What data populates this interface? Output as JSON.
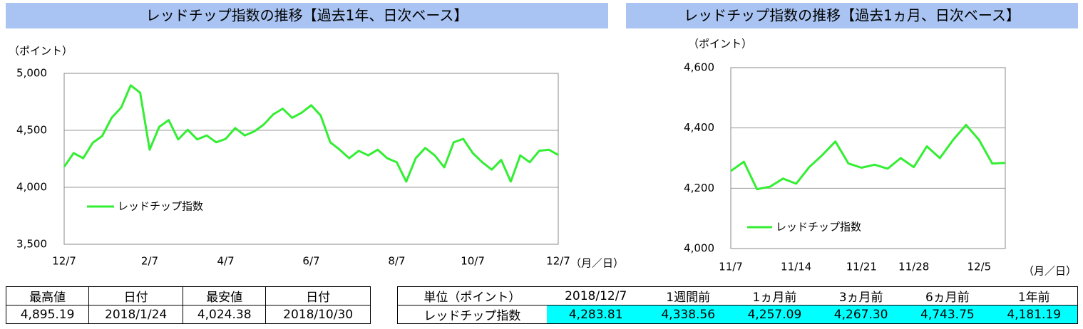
{
  "chart_data": [
    {
      "type": "line",
      "title": "レッドチップ指数の推移【過去1年、日次ベース】",
      "y_unit": "（ポイント）",
      "x_unit": "（月／日）",
      "categories": [
        "12/7",
        null,
        null,
        null,
        null,
        null,
        null,
        null,
        null,
        "2/7",
        null,
        null,
        null,
        null,
        null,
        null,
        null,
        "4/7",
        null,
        null,
        null,
        null,
        null,
        null,
        null,
        null,
        "6/7",
        null,
        null,
        null,
        null,
        null,
        null,
        null,
        null,
        "8/7",
        null,
        null,
        null,
        null,
        null,
        null,
        null,
        "10/7",
        null,
        null,
        null,
        null,
        null,
        null,
        null,
        null,
        "12/7"
      ],
      "series": [
        {
          "name": "レッドチップ指数",
          "color": "#33ee33",
          "values": [
            4180,
            4300,
            4255,
            4390,
            4450,
            4610,
            4700,
            4895,
            4830,
            4330,
            4530,
            4590,
            4420,
            4505,
            4420,
            4455,
            4395,
            4425,
            4520,
            4455,
            4490,
            4550,
            4640,
            4690,
            4610,
            4655,
            4720,
            4630,
            4395,
            4330,
            4255,
            4320,
            4280,
            4330,
            4255,
            4220,
            4050,
            4255,
            4345,
            4280,
            4175,
            4395,
            4425,
            4300,
            4220,
            4155,
            4240,
            4050,
            4280,
            4220,
            4320,
            4330,
            4284
          ]
        }
      ],
      "ylim": [
        3500,
        5000
      ],
      "yticks": [
        {
          "value": 3500,
          "label": "3,500"
        },
        {
          "value": 4000,
          "label": "4,000"
        },
        {
          "value": 4500,
          "label": "4,500"
        },
        {
          "value": 5000,
          "label": "5,000"
        }
      ],
      "grid": true,
      "legend": "lower left"
    },
    {
      "type": "line",
      "title": "レッドチップ指数の推移【過去1ヵ月、日次ベース】",
      "y_unit": "（ポイント）",
      "x_unit": "（月／日）",
      "categories": [
        "11/7",
        null,
        null,
        null,
        null,
        "11/14",
        null,
        null,
        null,
        null,
        "11/21",
        null,
        null,
        null,
        "11/28",
        null,
        null,
        null,
        null,
        "12/5",
        null,
        null
      ],
      "series": [
        {
          "name": "レッドチップ指数",
          "color": "#33ee33",
          "values": [
            4257,
            4288,
            4197,
            4205,
            4232,
            4215,
            4270,
            4310,
            4355,
            4282,
            4268,
            4278,
            4265,
            4300,
            4270,
            4339,
            4300,
            4360,
            4410,
            4360,
            4282,
            4284
          ]
        }
      ],
      "ylim": [
        4000,
        4600
      ],
      "yticks": [
        {
          "value": 4000,
          "label": "4,000"
        },
        {
          "value": 4200,
          "label": "4,200"
        },
        {
          "value": 4400,
          "label": "4,400"
        },
        {
          "value": 4600,
          "label": "4,600"
        }
      ],
      "grid": true,
      "legend": "lower left"
    }
  ],
  "tables": [
    {
      "header": [
        "最高値",
        "日付",
        "最安値",
        "日付"
      ],
      "rows": [
        [
          "4,895.19",
          "2018/1/24",
          "4,024.38",
          "2018/10/30"
        ]
      ]
    },
    {
      "header": [
        "単位（ポイント）",
        "2018/12/7",
        "1週間前",
        "1ヵ月前",
        "3ヵ月前",
        "6ヵ月前",
        "1年前"
      ],
      "rows": [
        [
          "レッドチップ指数",
          "4,283.81",
          "4,338.56",
          "4,257.09",
          "4,267.30",
          "4,743.75",
          "4,181.19"
        ]
      ]
    }
  ]
}
